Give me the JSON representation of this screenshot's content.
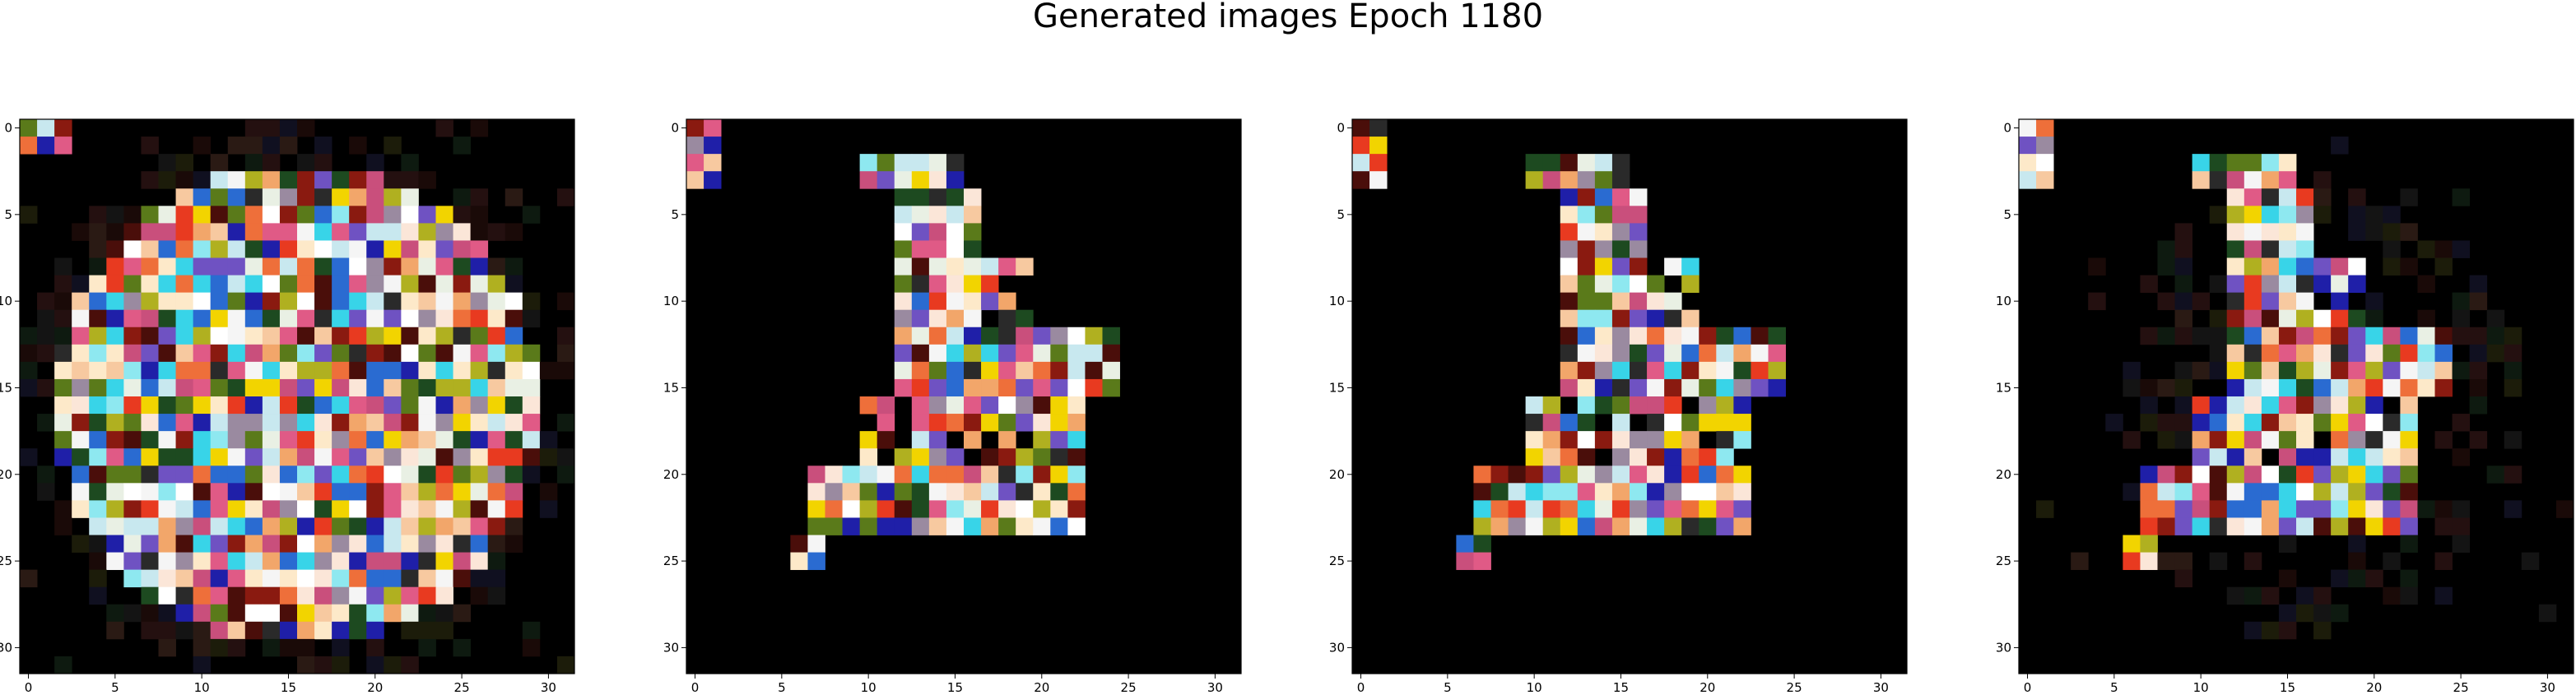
{
  "figure": {
    "title": "Generated images Epoch 1180",
    "background": "#ffffff",
    "pixel_background": "#000000"
  },
  "chart_data": {
    "type": "heatmap",
    "title": "Generated images Epoch 1180",
    "grid": false,
    "legend": "none",
    "panels": [
      {
        "name": "",
        "xlim": [
          -0.5,
          31.5
        ],
        "ylim": [
          31.5,
          -0.5
        ],
        "x_ticks": [
          0,
          5,
          10,
          15,
          20,
          25,
          30
        ],
        "y_ticks": [
          0,
          5,
          10,
          15,
          20,
          25,
          30
        ],
        "rows": 32,
        "cols": 32,
        "content": "multicolor 32x32 generated image, rounded blob shape covering most of the frame"
      },
      {
        "name": "",
        "xlim": [
          -0.5,
          31.5
        ],
        "ylim": [
          31.5,
          -0.5
        ],
        "x_ticks": [
          0,
          5,
          10,
          15,
          20,
          25,
          30
        ],
        "y_ticks": [
          0,
          5,
          10,
          15,
          20,
          25,
          30
        ],
        "rows": 32,
        "cols": 32,
        "content": "multicolor 32x32 generated image, boot-like shape on black background"
      },
      {
        "name": "",
        "xlim": [
          -0.5,
          31.5
        ],
        "ylim": [
          31.5,
          -0.5
        ],
        "x_ticks": [
          0,
          5,
          10,
          15,
          20,
          25,
          30
        ],
        "y_ticks": [
          0,
          5,
          10,
          15,
          20,
          25,
          30
        ],
        "rows": 32,
        "cols": 32,
        "content": "multicolor 32x32 generated image, boot-like shape on black background"
      },
      {
        "name": "",
        "xlim": [
          -0.5,
          31.5
        ],
        "ylim": [
          31.5,
          -0.5
        ],
        "x_ticks": [
          0,
          5,
          10,
          15,
          20,
          25,
          30
        ],
        "y_ticks": [
          0,
          5,
          10,
          15,
          20,
          25,
          30
        ],
        "rows": 32,
        "cols": 32,
        "content": "multicolor 32x32 generated image, boot-like shape with faint noisy surroundings"
      }
    ],
    "palette": [
      "#fde9c9",
      "#f7c9a0",
      "#f2a66a",
      "#ee6f3a",
      "#e83a20",
      "#fbe6d8",
      "#e9f0e4",
      "#c8e8ef",
      "#8ee8f0",
      "#38d4e8",
      "#2a6bd1",
      "#1f1fa8",
      "#6f52c2",
      "#c94f7c",
      "#e05a86",
      "#f2d400",
      "#b0b020",
      "#5a7a1a",
      "#1d4a20",
      "#8a1a10",
      "#4a0e0a",
      "#2a2a2a",
      "#f5f5f5",
      "#ffffff",
      "#9a8aa0"
    ]
  }
}
